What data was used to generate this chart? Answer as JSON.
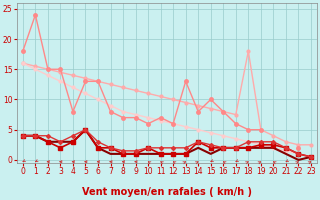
{
  "background_color": "#caf0f0",
  "grid_color": "#99cccc",
  "xlabel": "Vent moyen/en rafales ( km/h )",
  "xlim_min": -0.5,
  "xlim_max": 23.5,
  "ylim_min": -0.5,
  "ylim_max": 26,
  "yticks": [
    0,
    5,
    10,
    15,
    20,
    25
  ],
  "xticks": [
    0,
    1,
    2,
    3,
    4,
    5,
    6,
    7,
    8,
    9,
    10,
    11,
    12,
    13,
    14,
    15,
    16,
    17,
    18,
    19,
    20,
    21,
    22,
    23
  ],
  "lines": [
    {
      "x": [
        0,
        1,
        2,
        3,
        4,
        5,
        6,
        7,
        8,
        9,
        10,
        11,
        12,
        13,
        14,
        15,
        16,
        17,
        18,
        19,
        20,
        21,
        22,
        23
      ],
      "y": [
        16,
        15.5,
        15,
        14.5,
        14,
        13.5,
        13,
        12.5,
        12,
        11.5,
        11,
        10.5,
        10,
        9.5,
        9,
        8.5,
        8,
        7.5,
        18,
        5,
        4,
        3,
        2.5,
        2.5
      ],
      "color": "#ffaaaa",
      "lw": 1.0,
      "marker": "o",
      "markersize": 2.0,
      "zorder": 2
    },
    {
      "x": [
        0,
        1,
        2,
        3,
        4,
        5,
        6,
        7,
        8,
        9,
        10,
        11,
        12,
        13,
        14,
        15,
        16,
        17,
        18,
        19,
        20,
        21,
        22,
        23
      ],
      "y": [
        18,
        24,
        15,
        15,
        8,
        13,
        13,
        8,
        7,
        7,
        6,
        7,
        6,
        13,
        8,
        10,
        8,
        6,
        5,
        5,
        null,
        null,
        2,
        null
      ],
      "color": "#ff8888",
      "lw": 1.0,
      "marker": "o",
      "markersize": 2.5,
      "zorder": 3
    },
    {
      "x": [
        0,
        1,
        2,
        3,
        4,
        5,
        6,
        7,
        8,
        9,
        10,
        11,
        12,
        13,
        14,
        15,
        16,
        17,
        18,
        19,
        20,
        21,
        22,
        23
      ],
      "y": [
        16,
        15,
        14,
        13,
        12,
        11,
        10,
        9,
        8,
        7.5,
        7,
        6.5,
        6,
        5.5,
        5,
        4.5,
        4,
        3.5,
        3,
        2.5,
        2,
        1.5,
        1,
        0.5
      ],
      "color": "#ffcccc",
      "lw": 1.0,
      "marker": "o",
      "markersize": 2.0,
      "zorder": 2
    },
    {
      "x": [
        0,
        1,
        2,
        3,
        4,
        5,
        6,
        7,
        8,
        9,
        10,
        11,
        12,
        13,
        14,
        15,
        16,
        17,
        18,
        19,
        20,
        21,
        22,
        23
      ],
      "y": [
        4,
        4,
        3,
        2,
        3,
        5,
        2,
        2,
        1,
        1,
        2,
        1,
        1,
        1,
        3,
        2,
        2,
        2,
        2,
        2.5,
        2.5,
        2,
        1,
        0.5
      ],
      "color": "#cc0000",
      "lw": 1.2,
      "marker": "s",
      "markersize": 2.5,
      "zorder": 4
    },
    {
      "x": [
        0,
        1,
        2,
        3,
        4,
        5,
        6,
        7,
        8,
        9,
        10,
        11,
        12,
        13,
        14,
        15,
        16,
        17,
        18,
        19,
        20,
        21,
        22,
        23
      ],
      "y": [
        4,
        4,
        4,
        3,
        4,
        5,
        3,
        2,
        1.5,
        1.5,
        2,
        2,
        2,
        2,
        3,
        2.5,
        2,
        2,
        3,
        3,
        3,
        2,
        1,
        0.5
      ],
      "color": "#dd3333",
      "lw": 1.0,
      "marker": "D",
      "markersize": 2.0,
      "zorder": 4
    },
    {
      "x": [
        0,
        1,
        2,
        3,
        4,
        5,
        6,
        7,
        8,
        9,
        10,
        11,
        12,
        13,
        14,
        15,
        16,
        17,
        18,
        19,
        20,
        21,
        22,
        23
      ],
      "y": [
        4,
        4,
        3,
        3,
        3,
        5,
        2,
        1,
        1,
        1,
        1,
        1,
        1,
        1,
        2,
        1,
        2,
        2,
        2,
        2,
        2,
        1,
        0,
        0.5
      ],
      "color": "#880000",
      "lw": 1.5,
      "marker": null,
      "markersize": 2,
      "zorder": 3
    }
  ],
  "arrow_angles": [
    225,
    225,
    270,
    270,
    270,
    270,
    270,
    270,
    270,
    270,
    315,
    315,
    315,
    45,
    45,
    225,
    315,
    225,
    45,
    45,
    315,
    225,
    45,
    45
  ],
  "arrow_color": "#cc3333",
  "xlabel_fontsize": 7,
  "tick_fontsize": 5.5,
  "tick_color": "#cc0000",
  "xlabel_color": "#cc0000"
}
